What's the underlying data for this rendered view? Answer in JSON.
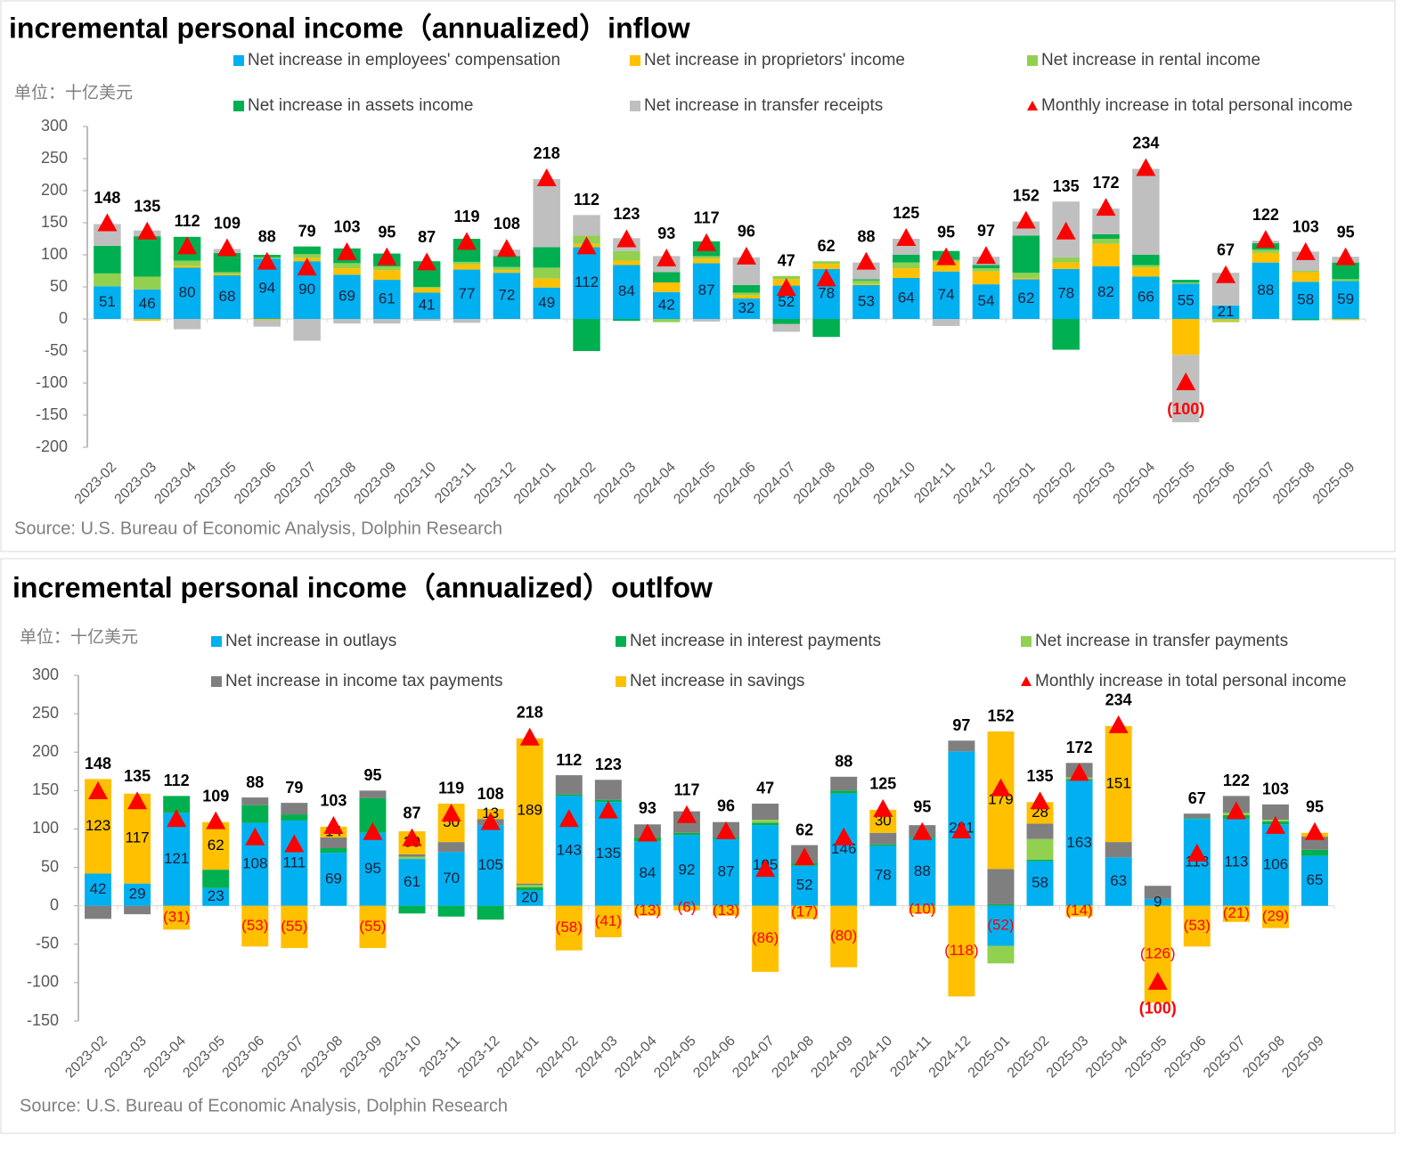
{
  "chart_data": [
    {
      "type": "bar",
      "stacked": true,
      "title": "incremental personal income（annualized）inflow",
      "unit_label": "单位：十亿美元",
      "source": "Source: U.S. Bureau of Economic Analysis, Dolphin Research",
      "categories": [
        "2023-02",
        "2023-03",
        "2023-04",
        "2023-05",
        "2023-06",
        "2023-07",
        "2023-08",
        "2023-09",
        "2023-10",
        "2023-11",
        "2023-12",
        "2024-01",
        "2024-02",
        "2024-03",
        "2024-04",
        "2024-05",
        "2024-06",
        "2024-07",
        "2024-08",
        "2024-09",
        "2024-10",
        "2024-11",
        "2024-12",
        "2025-01",
        "2025-02",
        "2025-03",
        "2025-04",
        "2025-05",
        "2025-06",
        "2025-07",
        "2025-08",
        "2025-09"
      ],
      "series": [
        {
          "name": "Net increase in employees' compensation",
          "color": "#00b0f0",
          "data_labels": true,
          "values": [
            51,
            46,
            80,
            68,
            94,
            90,
            69,
            61,
            41,
            77,
            72,
            49,
            112,
            84,
            42,
            87,
            32,
            52,
            78,
            53,
            64,
            74,
            54,
            62,
            78,
            82,
            66,
            55,
            21,
            88,
            58,
            59
          ]
        },
        {
          "name": "Net increase in proprietors' income",
          "color": "#ffc000",
          "values": [
            0,
            -3,
            3,
            2,
            -2,
            5,
            10,
            15,
            7,
            8,
            4,
            14,
            5,
            7,
            15,
            7,
            5,
            10,
            8,
            2,
            15,
            15,
            20,
            2,
            10,
            35,
            14,
            -56,
            -3,
            15,
            15,
            -2
          ]
        },
        {
          "name": "Net increase in rental income",
          "color": "#92d050",
          "values": [
            20,
            20,
            8,
            3,
            2,
            6,
            8,
            6,
            2,
            4,
            5,
            17,
            13,
            15,
            -5,
            4,
            4,
            5,
            4,
            5,
            9,
            3,
            5,
            8,
            8,
            8,
            4,
            2,
            -2,
            5,
            2,
            3
          ]
        },
        {
          "name": "Net increase in assets income",
          "color": "#00b050",
          "values": [
            43,
            63,
            37,
            30,
            4,
            12,
            23,
            20,
            40,
            36,
            17,
            32,
            -50,
            -3,
            16,
            23,
            12,
            -8,
            -28,
            2,
            12,
            14,
            5,
            58,
            -48,
            7,
            16,
            4,
            0,
            10,
            -2,
            26
          ]
        },
        {
          "name": "Net increase in transfer receipts",
          "color": "#bfbfbf",
          "values": [
            34,
            9,
            -16,
            6,
            -10,
            -34,
            -7,
            -7,
            -3,
            -6,
            10,
            106,
            32,
            20,
            25,
            -4,
            43,
            -12,
            0,
            26,
            25,
            -11,
            13,
            22,
            87,
            40,
            134,
            -105,
            51,
            4,
            30,
            9
          ]
        },
        {
          "name": "Monthly increase in total personal income",
          "type": "marker",
          "marker": "triangle",
          "color": "#ff0000",
          "values": [
            148,
            135,
            112,
            109,
            88,
            79,
            103,
            95,
            87,
            119,
            108,
            218,
            112,
            123,
            93,
            117,
            96,
            47,
            62,
            88,
            125,
            95,
            97,
            152,
            135,
            172,
            234,
            -100,
            67,
            122,
            103,
            95
          ],
          "value_labels": [
            "148",
            "135",
            "112",
            "109",
            "88",
            "79",
            "103",
            "95",
            "87",
            "119",
            "108",
            "218",
            "112",
            "123",
            "93",
            "117",
            "96",
            "47",
            "62",
            "88",
            "125",
            "95",
            "97",
            "152",
            "135",
            "172",
            "234",
            "(100)",
            "67",
            "122",
            "103",
            "95"
          ]
        }
      ],
      "ylim": [
        -200,
        300
      ],
      "yticks": [
        -200,
        -150,
        -100,
        -50,
        0,
        50,
        100,
        150,
        200,
        250,
        300
      ]
    },
    {
      "type": "bar",
      "stacked": true,
      "title": "incremental personal income（annualized）outlfow",
      "unit_label": "单位：十亿美元",
      "source": "Source: U.S. Bureau of Economic Analysis, Dolphin Research",
      "categories": [
        "2023-02",
        "2023-03",
        "2023-04",
        "2023-05",
        "2023-06",
        "2023-07",
        "2023-08",
        "2023-09",
        "2023-10",
        "2023-11",
        "2023-12",
        "2024-01",
        "2024-02",
        "2024-03",
        "2024-04",
        "2024-05",
        "2024-06",
        "2024-07",
        "2024-08",
        "2024-09",
        "2024-10",
        "2024-11",
        "2024-12",
        "2025-01",
        "2025-02",
        "2025-03",
        "2025-04",
        "2025-05",
        "2025-06",
        "2025-07",
        "2025-08",
        "2025-09"
      ],
      "series": [
        {
          "name": "Net increase in outlays",
          "color": "#00b0f0",
          "data_labels": true,
          "values": [
            42,
            29,
            121,
            23,
            108,
            111,
            69,
            95,
            61,
            70,
            105,
            20,
            143,
            135,
            84,
            92,
            87,
            105,
            52,
            146,
            78,
            88,
            201,
            -52,
            58,
            163,
            63,
            9,
            113,
            113,
            106,
            65
          ],
          "value_labels": [
            "42",
            "29",
            "121",
            "23",
            "108",
            "111",
            "69",
            "95",
            "61",
            "70",
            "105",
            "20",
            "143",
            "135",
            "84",
            "92",
            "87",
            "105",
            "52",
            "146",
            "78",
            "88",
            "201",
            "(52)",
            "58",
            "163",
            "63",
            "9",
            "113",
            "113",
            "106",
            "65"
          ]
        },
        {
          "name": "Net increase in interest payments",
          "color": "#00b050",
          "values": [
            0,
            0,
            22,
            24,
            23,
            8,
            6,
            45,
            -10,
            -14,
            -18,
            4,
            2,
            3,
            5,
            3,
            2,
            3,
            4,
            4,
            2,
            2,
            0,
            2,
            2,
            2,
            0,
            0,
            1,
            5,
            4,
            8
          ]
        },
        {
          "name": "Net increase in transfer payments",
          "color": "#92d050",
          "values": [
            0,
            0,
            0,
            0,
            0,
            0,
            0,
            0,
            3,
            0,
            0,
            3,
            0,
            0,
            0,
            0,
            0,
            4,
            0,
            0,
            0,
            0,
            0,
            -23,
            27,
            2,
            0,
            0,
            0,
            3,
            2,
            0
          ]
        },
        {
          "name": "Net increase in income tax payments",
          "color": "#7f7f7f",
          "values": [
            -17,
            -11,
            0,
            0,
            10,
            15,
            14,
            10,
            3,
            13,
            8,
            2,
            25,
            26,
            17,
            28,
            20,
            21,
            23,
            18,
            15,
            15,
            14,
            46,
            20,
            19,
            20,
            17,
            6,
            22,
            20,
            17
          ]
        },
        {
          "name": "Net increase in savings",
          "color": "#ffc000",
          "data_labels": true,
          "values": [
            123,
            117,
            -31,
            62,
            -53,
            -55,
            14,
            -55,
            30,
            50,
            13,
            189,
            -58,
            -41,
            -13,
            -6,
            -13,
            -86,
            -17,
            -80,
            30,
            -10,
            -118,
            179,
            28,
            -14,
            151,
            -126,
            -53,
            -21,
            -29,
            5
          ],
          "value_labels": [
            "123",
            "117",
            "(31)",
            "62",
            "(53)",
            "(55)",
            "14",
            "(55)",
            "30",
            "50",
            "13",
            "189",
            "(58)",
            "(41)",
            "(13)",
            "(6)",
            "(13)",
            "(86)",
            "(17)",
            "(80)",
            "30",
            "(10)",
            "(118)",
            "179",
            "28",
            "(14)",
            "151",
            "(126)",
            "(53)",
            "(21)",
            "(29)",
            "5"
          ]
        },
        {
          "name": "Monthly increase in total personal income",
          "type": "marker",
          "marker": "triangle",
          "color": "#ff0000",
          "values": [
            148,
            135,
            112,
            109,
            88,
            79,
            103,
            95,
            87,
            119,
            108,
            218,
            112,
            123,
            93,
            117,
            96,
            47,
            62,
            88,
            125,
            95,
            97,
            152,
            135,
            172,
            234,
            -100,
            67,
            122,
            103,
            95
          ],
          "value_labels": [
            "148",
            "135",
            "112",
            "109",
            "88",
            "79",
            "103",
            "95",
            "87",
            "119",
            "108",
            "218",
            "112",
            "123",
            "93",
            "117",
            "96",
            "47",
            "62",
            "88",
            "125",
            "95",
            "97",
            "152",
            "135",
            "172",
            "234",
            "(100)",
            "67",
            "122",
            "103",
            "95"
          ]
        }
      ],
      "ylim": [
        -150,
        300
      ],
      "yticks": [
        -150,
        -100,
        -50,
        0,
        50,
        100,
        150,
        200,
        250,
        300
      ]
    }
  ]
}
